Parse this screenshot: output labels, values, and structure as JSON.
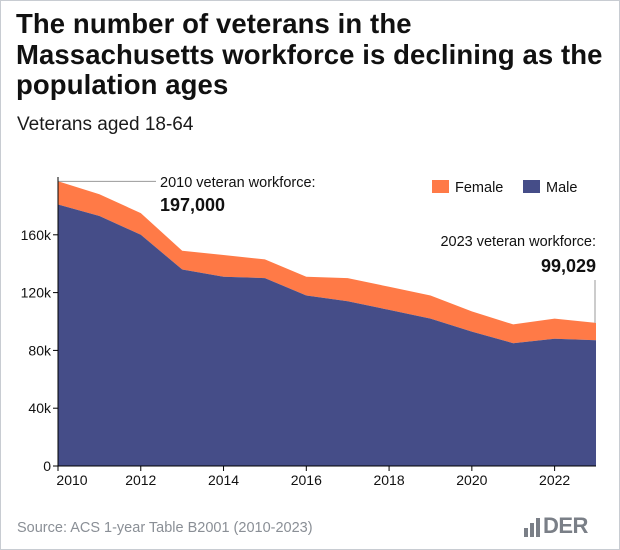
{
  "title": "The number of veterans in the Massachusetts workforce is declining as the population ages",
  "subtitle": "Veterans aged 18-64",
  "source": "Source: ACS 1-year Table B2001 (2010-2023)",
  "logo_text": "DER",
  "colors": {
    "male": "#454d88",
    "female": "#ff7a47",
    "axis": "#000000",
    "annotation_line": "#999999",
    "logo": "#7a7f87"
  },
  "annotations": {
    "start_label": "2010 veteran workforce:",
    "start_value": "197,000",
    "end_label": "2023 veteran workforce:",
    "end_value": "99,029"
  },
  "chart_data": {
    "type": "area",
    "stacked": true,
    "title": "The number of veterans in the Massachusetts workforce is declining as the population ages",
    "subtitle": "Veterans aged 18-64",
    "x": [
      2010,
      2011,
      2012,
      2013,
      2014,
      2015,
      2016,
      2017,
      2018,
      2019,
      2020,
      2021,
      2022,
      2023
    ],
    "series": [
      {
        "name": "Male",
        "values": [
          181000,
          173000,
          160000,
          136000,
          131000,
          130000,
          118000,
          114000,
          108000,
          102000,
          93000,
          85000,
          88000,
          87000
        ]
      },
      {
        "name": "Female",
        "values": [
          16000,
          15000,
          15000,
          13000,
          15000,
          13000,
          13000,
          16000,
          16000,
          16000,
          14000,
          13000,
          14000,
          12029
        ]
      }
    ],
    "xlim": [
      2010,
      2023
    ],
    "ylim": [
      0,
      200000
    ],
    "x_ticks": [
      2010,
      2012,
      2014,
      2016,
      2018,
      2020,
      2022
    ],
    "y_ticks": [
      0,
      40000,
      80000,
      120000,
      160000
    ],
    "y_tick_labels": [
      "0",
      "40k",
      "80k",
      "120k",
      "160k"
    ],
    "legend": [
      "Female",
      "Male"
    ],
    "legend_position": "top-right",
    "grid": false
  }
}
